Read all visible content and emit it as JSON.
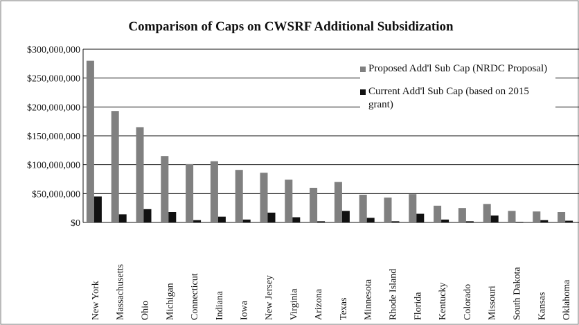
{
  "chart_data": {
    "type": "bar",
    "title": "Comparison of Caps on CWSRF Additional Subsidization",
    "categories": [
      "New York",
      "Massachusetts",
      "Ohio",
      "Michigan",
      "Connecticut",
      "Indiana",
      "Iowa",
      "New Jersey",
      "Virginia",
      "Arizona",
      "Texas",
      "Minnesota",
      "Rhode Island",
      "Florida",
      "Kentucky",
      "Colorado",
      "Missouri",
      "South Dakota",
      "Kansas",
      "Oklahoma"
    ],
    "series": [
      {
        "name": "Proposed Add'l Sub Cap (NRDC Proposal)",
        "color": "#808080",
        "values": [
          280000000,
          193000000,
          165000000,
          115000000,
          101000000,
          106000000,
          91000000,
          86000000,
          74000000,
          60000000,
          70000000,
          48000000,
          43000000,
          49000000,
          29000000,
          25000000,
          32000000,
          20000000,
          19000000,
          18000000
        ]
      },
      {
        "name": "Current Add'l Sub Cap (based on 2015 grant)",
        "color": "#111111",
        "values": [
          45000000,
          14000000,
          23000000,
          18000000,
          4000000,
          10000000,
          5000000,
          17000000,
          9000000,
          2000000,
          20000000,
          8000000,
          2000000,
          15000000,
          5000000,
          2000000,
          12000000,
          1000000,
          4000000,
          3000000
        ]
      }
    ],
    "ylim": [
      0,
      300000000
    ],
    "yticks": [
      {
        "value": 0,
        "label": "$0"
      },
      {
        "value": 50000000,
        "label": "$50,000,000"
      },
      {
        "value": 100000000,
        "label": "$100,000,000"
      },
      {
        "value": 150000000,
        "label": "$150,000,000"
      },
      {
        "value": 200000000,
        "label": "$200,000,000"
      },
      {
        "value": 250000000,
        "label": "$250,000,000"
      },
      {
        "value": 300000000,
        "label": "$300,000,000"
      }
    ],
    "grid": true,
    "legend": "upper right"
  }
}
